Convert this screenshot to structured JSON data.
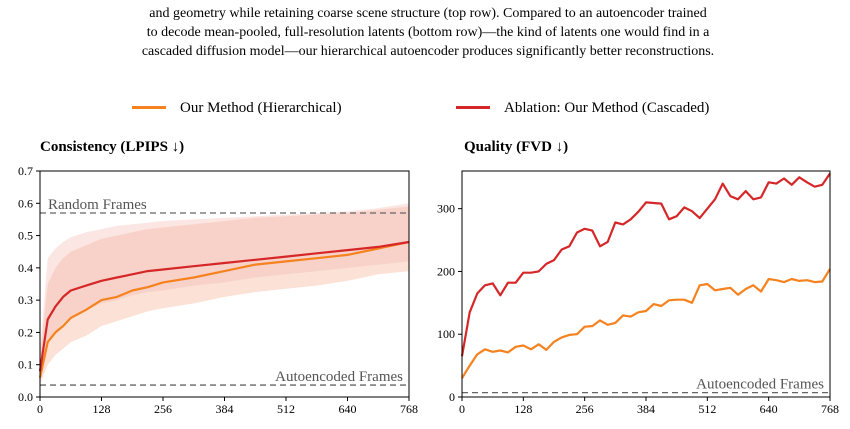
{
  "caption": {
    "line1": "and geometry while retaining coarse scene structure (top row). Compared to an autoencoder trained",
    "line2": "to decode mean-pooled, full-resolution latents (bottom row)—the kind of latents one would find in a",
    "line3": "cascaded diffusion model—our hierarchical autoencoder produces significantly better reconstructions."
  },
  "legend": {
    "hier_label": "Our Method (Hierarchical)",
    "casc_label": "Ablation: Our Method (Cascaded)"
  },
  "colors": {
    "hierarchical": "#f5821f",
    "cascaded": "#d62728",
    "band": "#f8c9b4",
    "reference": "#666666"
  },
  "chart_data": [
    {
      "type": "line",
      "title": "Consistency (LPIPS ↓)",
      "xlabel": "",
      "ylabel": "",
      "xlim": [
        0,
        768
      ],
      "ylim": [
        0,
        0.7
      ],
      "xticks": [
        0,
        128,
        256,
        384,
        512,
        640,
        768
      ],
      "yticks": [
        0.0,
        0.1,
        0.2,
        0.3,
        0.4,
        0.5,
        0.6,
        0.7
      ],
      "ytick_labels": [
        "0.0",
        "0.1",
        "0.2",
        "0.3",
        "0.4",
        "0.5",
        "0.6",
        "0.7"
      ],
      "reference_lines": [
        {
          "label": "Random Frames",
          "y": 0.57,
          "label_pos": "left"
        },
        {
          "label": "Autoencoded Frames",
          "y": 0.037,
          "label_pos": "right"
        }
      ],
      "series": [
        {
          "name": "Our Method (Hierarchical)",
          "x": [
            0,
            16,
            32,
            48,
            64,
            96,
            128,
            160,
            192,
            224,
            256,
            320,
            384,
            448,
            512,
            576,
            640,
            704,
            768
          ],
          "y": [
            0.06,
            0.17,
            0.2,
            0.22,
            0.245,
            0.27,
            0.3,
            0.31,
            0.33,
            0.34,
            0.355,
            0.37,
            0.39,
            0.41,
            0.42,
            0.43,
            0.44,
            0.46,
            0.48
          ],
          "band_low": [
            0.04,
            0.1,
            0.13,
            0.15,
            0.17,
            0.19,
            0.22,
            0.235,
            0.25,
            0.265,
            0.275,
            0.29,
            0.31,
            0.325,
            0.335,
            0.345,
            0.36,
            0.38,
            0.39
          ],
          "band_high": [
            0.12,
            0.35,
            0.4,
            0.43,
            0.45,
            0.47,
            0.49,
            0.5,
            0.51,
            0.52,
            0.525,
            0.535,
            0.545,
            0.555,
            0.56,
            0.565,
            0.57,
            0.58,
            0.59
          ]
        },
        {
          "name": "Ablation: Our Method (Cascaded)",
          "x": [
            0,
            16,
            32,
            48,
            64,
            96,
            128,
            160,
            192,
            224,
            256,
            320,
            384,
            448,
            512,
            576,
            640,
            704,
            768
          ],
          "y": [
            0.08,
            0.24,
            0.28,
            0.31,
            0.33,
            0.345,
            0.36,
            0.37,
            0.38,
            0.39,
            0.395,
            0.405,
            0.415,
            0.425,
            0.435,
            0.445,
            0.455,
            0.465,
            0.48
          ],
          "band_low": [
            0.06,
            0.18,
            0.2,
            0.23,
            0.25,
            0.27,
            0.29,
            0.3,
            0.315,
            0.325,
            0.33,
            0.345,
            0.355,
            0.37,
            0.38,
            0.39,
            0.4,
            0.41,
            0.42
          ],
          "band_high": [
            0.14,
            0.43,
            0.46,
            0.48,
            0.495,
            0.51,
            0.52,
            0.53,
            0.535,
            0.54,
            0.545,
            0.55,
            0.555,
            0.56,
            0.565,
            0.57,
            0.575,
            0.585,
            0.6
          ]
        }
      ]
    },
    {
      "type": "line",
      "title": "Quality (FVD ↓)",
      "xlabel": "",
      "ylabel": "",
      "xlim": [
        0,
        768
      ],
      "ylim": [
        0,
        360
      ],
      "xticks": [
        0,
        128,
        256,
        384,
        512,
        640,
        768
      ],
      "yticks": [
        0,
        100,
        200,
        300
      ],
      "ytick_labels": [
        "0",
        "100",
        "200",
        "300"
      ],
      "reference_lines": [
        {
          "label": "Autoencoded Frames",
          "y": 7,
          "label_pos": "right"
        }
      ],
      "series": [
        {
          "name": "Our Method (Hierarchical)",
          "x": [
            0,
            16,
            32,
            48,
            64,
            80,
            96,
            112,
            128,
            144,
            160,
            176,
            192,
            208,
            224,
            240,
            256,
            272,
            288,
            304,
            320,
            336,
            352,
            368,
            384,
            400,
            416,
            432,
            448,
            464,
            480,
            496,
            512,
            528,
            544,
            560,
            576,
            592,
            608,
            624,
            640,
            656,
            672,
            688,
            704,
            720,
            736,
            752,
            768
          ],
          "y": [
            30,
            50,
            68,
            76,
            72,
            74,
            71,
            80,
            82,
            76,
            84,
            75,
            88,
            95,
            99,
            100,
            112,
            113,
            122,
            115,
            118,
            130,
            128,
            135,
            137,
            148,
            145,
            154,
            155,
            155,
            150,
            178,
            180,
            170,
            172,
            174,
            163,
            172,
            178,
            168,
            188,
            186,
            183,
            188,
            185,
            186,
            183,
            184,
            204
          ],
          "band_low": [],
          "band_high": []
        },
        {
          "name": "Ablation: Our Method (Cascaded)",
          "x": [
            0,
            16,
            32,
            48,
            64,
            80,
            96,
            112,
            128,
            144,
            160,
            176,
            192,
            208,
            224,
            240,
            256,
            272,
            288,
            304,
            320,
            336,
            352,
            368,
            384,
            400,
            416,
            432,
            448,
            464,
            480,
            496,
            512,
            528,
            544,
            560,
            576,
            592,
            608,
            624,
            640,
            656,
            672,
            688,
            704,
            720,
            736,
            752,
            768
          ],
          "y": [
            65,
            135,
            165,
            178,
            181,
            162,
            182,
            182,
            198,
            198,
            200,
            212,
            218,
            235,
            240,
            262,
            268,
            265,
            240,
            247,
            278,
            275,
            283,
            295,
            310,
            309,
            308,
            283,
            288,
            302,
            296,
            285,
            300,
            315,
            340,
            320,
            315,
            328,
            315,
            318,
            342,
            340,
            348,
            338,
            350,
            342,
            335,
            338,
            356
          ],
          "band_low": [],
          "band_high": []
        }
      ]
    }
  ]
}
